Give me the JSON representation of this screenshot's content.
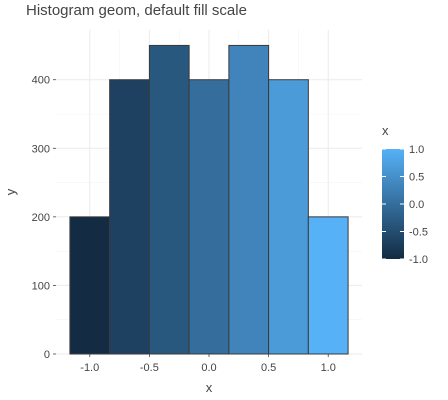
{
  "chart_data": {
    "type": "bar",
    "subtype": "histogram",
    "title": "Histogram geom, default fill scale",
    "xlabel": "x",
    "ylabel": "y",
    "x_centers": [
      -1.0,
      -0.6667,
      -0.3333,
      0.0,
      0.3333,
      0.6667,
      1.0
    ],
    "values": [
      200,
      400,
      450,
      400,
      450,
      400,
      200
    ],
    "fill_values": [
      -1.0,
      -0.6667,
      -0.3333,
      0.0,
      0.3333,
      0.6667,
      1.0
    ],
    "xlim": [
      -1.2833,
      1.2833
    ],
    "ylim": [
      0,
      472.5
    ],
    "x_ticks": [
      -1.0,
      -0.5,
      0.0,
      0.5,
      1.0
    ],
    "x_tick_labels": [
      "-1.0",
      "-0.5",
      "0.0",
      "0.5",
      "1.0"
    ],
    "y_ticks": [
      0,
      100,
      200,
      300,
      400
    ],
    "y_tick_labels": [
      "0",
      "100",
      "200",
      "300",
      "400"
    ],
    "grid": true,
    "legend": {
      "title": "x",
      "position": "right",
      "ticks": [
        1.0,
        0.5,
        0.0,
        -0.5,
        -1.0
      ],
      "labels": [
        "1.0",
        "0.5",
        "0.0",
        "-0.5",
        "-1.0"
      ],
      "color_low": "#132B43",
      "color_high": "#56B1F7"
    }
  }
}
